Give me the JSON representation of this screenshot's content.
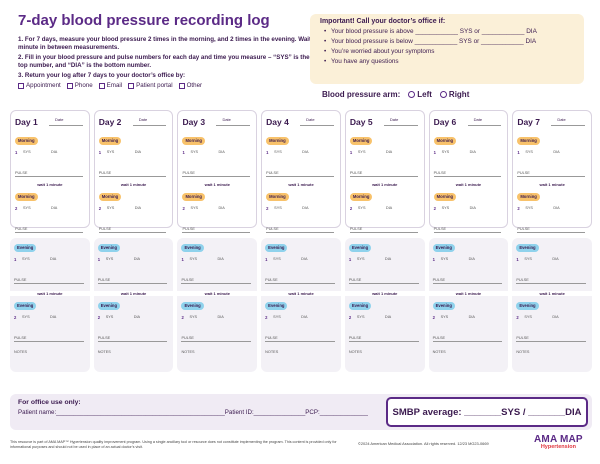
{
  "title": "7-day blood pressure recording log",
  "instructions": {
    "step1": "1. For 7 days, measure your blood pressure 2 times in the morning, and 2 times in the evening. Wait 1 minute in between measurements.",
    "step2": "2. Fill in your blood pressure and pulse numbers for each day and time you measure – “SYS” is the top number, and “DIA” is the bottom number.",
    "step3": "3. Return your log after 7 days to your doctor’s office by:",
    "return_options": [
      "Appointment",
      "Phone",
      "Email",
      "Patient portal",
      "Other"
    ]
  },
  "important": {
    "heading": "Important! Call your doctor’s office if:",
    "items": [
      "Your blood pressure is above ____________ SYS or ____________ DIA",
      "Your blood pressure is below ____________ SYS or ____________ DIA",
      "You’re worried about your symptoms",
      "You have any questions"
    ]
  },
  "arm": {
    "label": "Blood pressure arm:",
    "left": "Left",
    "right": "Right"
  },
  "days": [
    {
      "label": "Day 1"
    },
    {
      "label": "Day 2"
    },
    {
      "label": "Day 3"
    },
    {
      "label": "Day 4"
    },
    {
      "label": "Day 5"
    },
    {
      "label": "Day 6"
    },
    {
      "label": "Day 7"
    }
  ],
  "cell": {
    "date": "Date",
    "morning": "Morning",
    "evening": "Evening",
    "sys": "SYS",
    "dia": "DIA",
    "pulse": "PULSE",
    "wait": "wait 1 minute",
    "notes": "NOTES",
    "r1": "1",
    "r2": "2"
  },
  "office": {
    "heading": "For office use only:",
    "fields": "Patient name:_________________________________________________Patient ID:_______________PCP:______________",
    "smbp": "SMBP average: _______SYS / _______DIA"
  },
  "footer": {
    "disclaimer": "This resource is part of AMA MAP™ Hypertension quality improvement program. Using a single ancillary tool or resource does not constitute implementing the program. This content is provided only for informational purposes and should not be used in place of an actual doctor’s visit.",
    "copyright": "©2024 American Medical Association. All rights reserved. 12/23 MG23-0669",
    "logo": "AMA MAP",
    "logo_sub": "Hypertension"
  },
  "colors": {
    "purple": "#5b2a86",
    "morning_badge": "#f8c26b",
    "evening_badge": "#8fd2ec",
    "important_bg": "#fbf0d8"
  }
}
